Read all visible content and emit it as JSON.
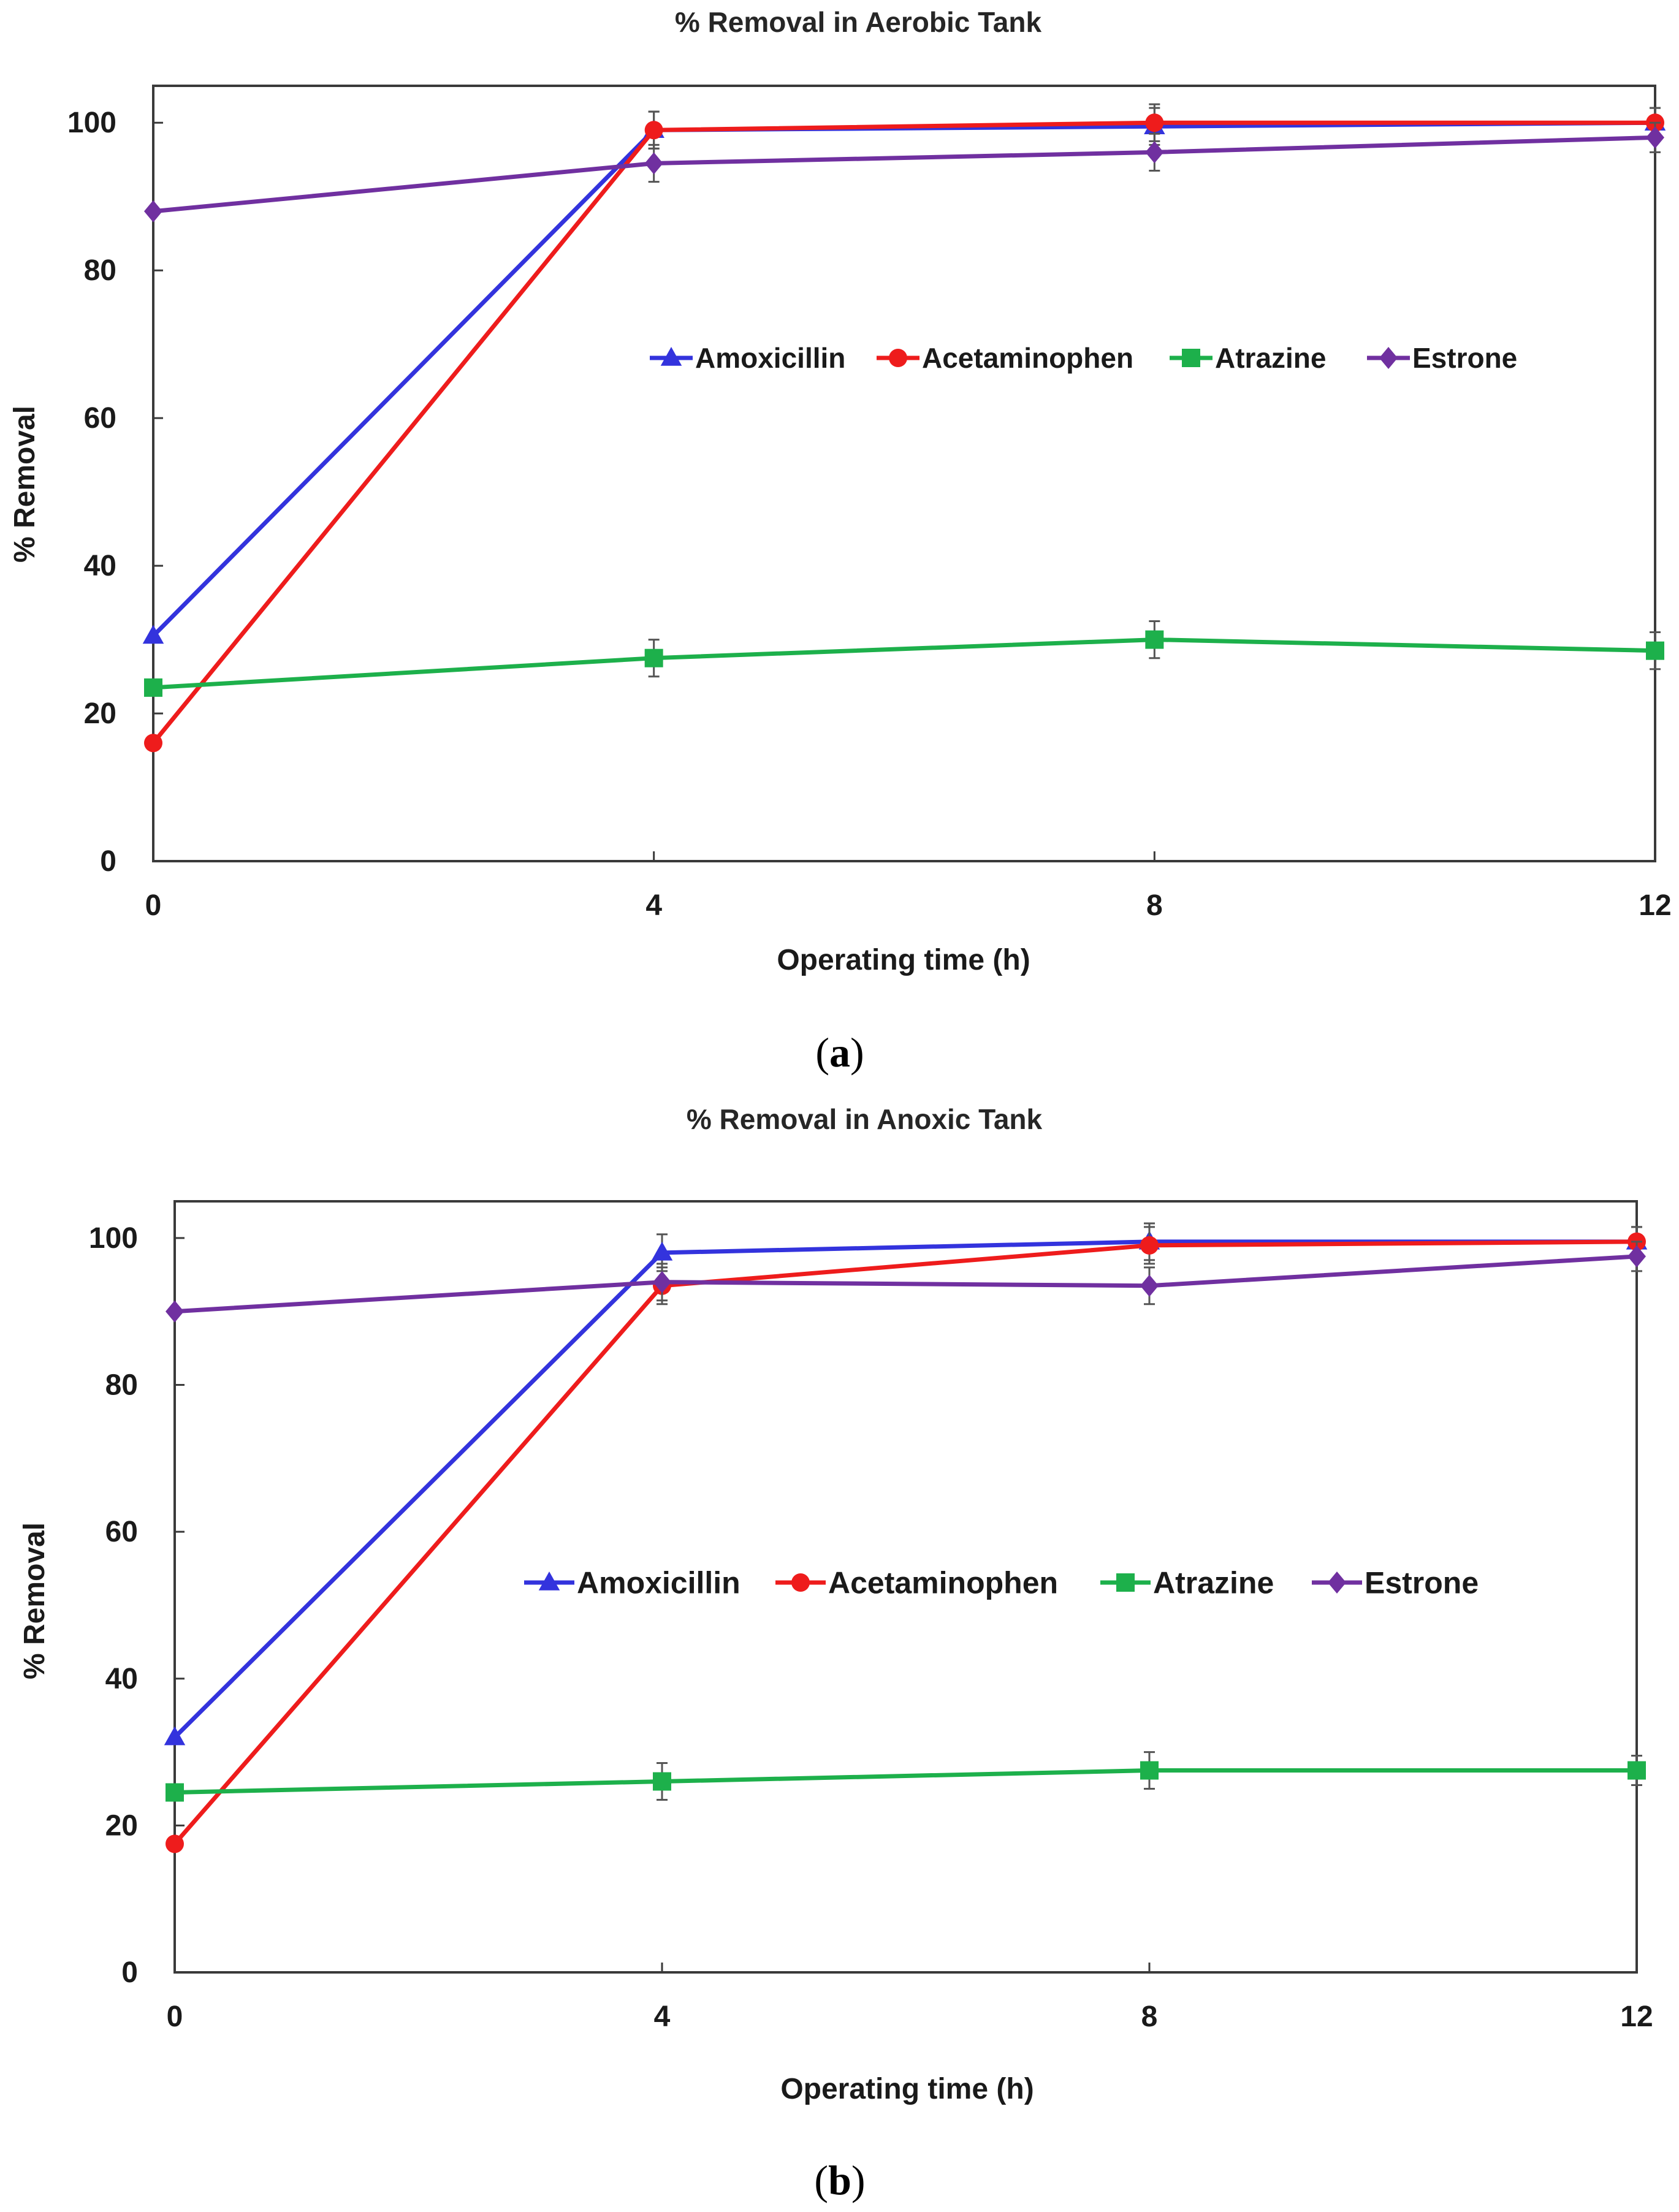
{
  "chart_data": [
    {
      "type": "line",
      "title": "% Removal in Aerobic Tank",
      "xlabel": "Operating time (h)",
      "ylabel": "% Removal",
      "x": [
        0,
        4,
        8,
        12
      ],
      "xticks": [
        "0",
        "4",
        "8",
        "12"
      ],
      "yticks": [
        "0",
        "20",
        "40",
        "60",
        "80",
        "100"
      ],
      "xlim": [
        0,
        12
      ],
      "ylim": [
        0,
        105
      ],
      "grid": false,
      "legend_position": "center",
      "caption_letter": "a",
      "series": [
        {
          "name": "Amoxicillin",
          "color": "#3333dd",
          "marker": "triangle",
          "values": [
            30.5,
            99,
            99.5,
            100
          ],
          "errors": [
            0,
            2.5,
            2.5,
            2
          ]
        },
        {
          "name": "Acetaminophen",
          "color": "#ee1c1c",
          "marker": "circle",
          "values": [
            16,
            99,
            100,
            100
          ],
          "errors": [
            0,
            2.5,
            2.5,
            2
          ]
        },
        {
          "name": "Atrazine",
          "color": "#1db04b",
          "marker": "square",
          "values": [
            23.5,
            27.5,
            30,
            28.5
          ],
          "errors": [
            0,
            2.5,
            2.5,
            2.5
          ]
        },
        {
          "name": "Estrone",
          "color": "#7030a0",
          "marker": "diamond",
          "values": [
            88,
            94.5,
            96,
            98
          ],
          "errors": [
            0,
            2.5,
            2.5,
            2
          ]
        }
      ]
    },
    {
      "type": "line",
      "title": "% Removal in Anoxic Tank",
      "xlabel": "Operating time (h)",
      "ylabel": "% Removal",
      "x": [
        0,
        4,
        8,
        12
      ],
      "xticks": [
        "0",
        "4",
        "8",
        "12"
      ],
      "yticks": [
        "0",
        "20",
        "40",
        "60",
        "80",
        "100"
      ],
      "xlim": [
        0,
        12
      ],
      "ylim": [
        0,
        105
      ],
      "grid": false,
      "legend_position": "center",
      "caption_letter": "b",
      "series": [
        {
          "name": "Amoxicillin",
          "color": "#3333dd",
          "marker": "triangle",
          "values": [
            32,
            98,
            99.5,
            99.5
          ],
          "errors": [
            0,
            2.5,
            2.5,
            2
          ]
        },
        {
          "name": "Acetaminophen",
          "color": "#ee1c1c",
          "marker": "circle",
          "values": [
            17.5,
            93.5,
            99,
            99.5
          ],
          "errors": [
            0,
            2.5,
            2.5,
            2
          ]
        },
        {
          "name": "Atrazine",
          "color": "#1db04b",
          "marker": "square",
          "values": [
            24.5,
            26,
            27.5,
            27.5
          ],
          "errors": [
            0,
            2.5,
            2.5,
            2
          ]
        },
        {
          "name": "Estrone",
          "color": "#7030a0",
          "marker": "diamond",
          "values": [
            90,
            94,
            93.5,
            97.5
          ],
          "errors": [
            0,
            2.5,
            2.5,
            2
          ]
        }
      ]
    }
  ]
}
